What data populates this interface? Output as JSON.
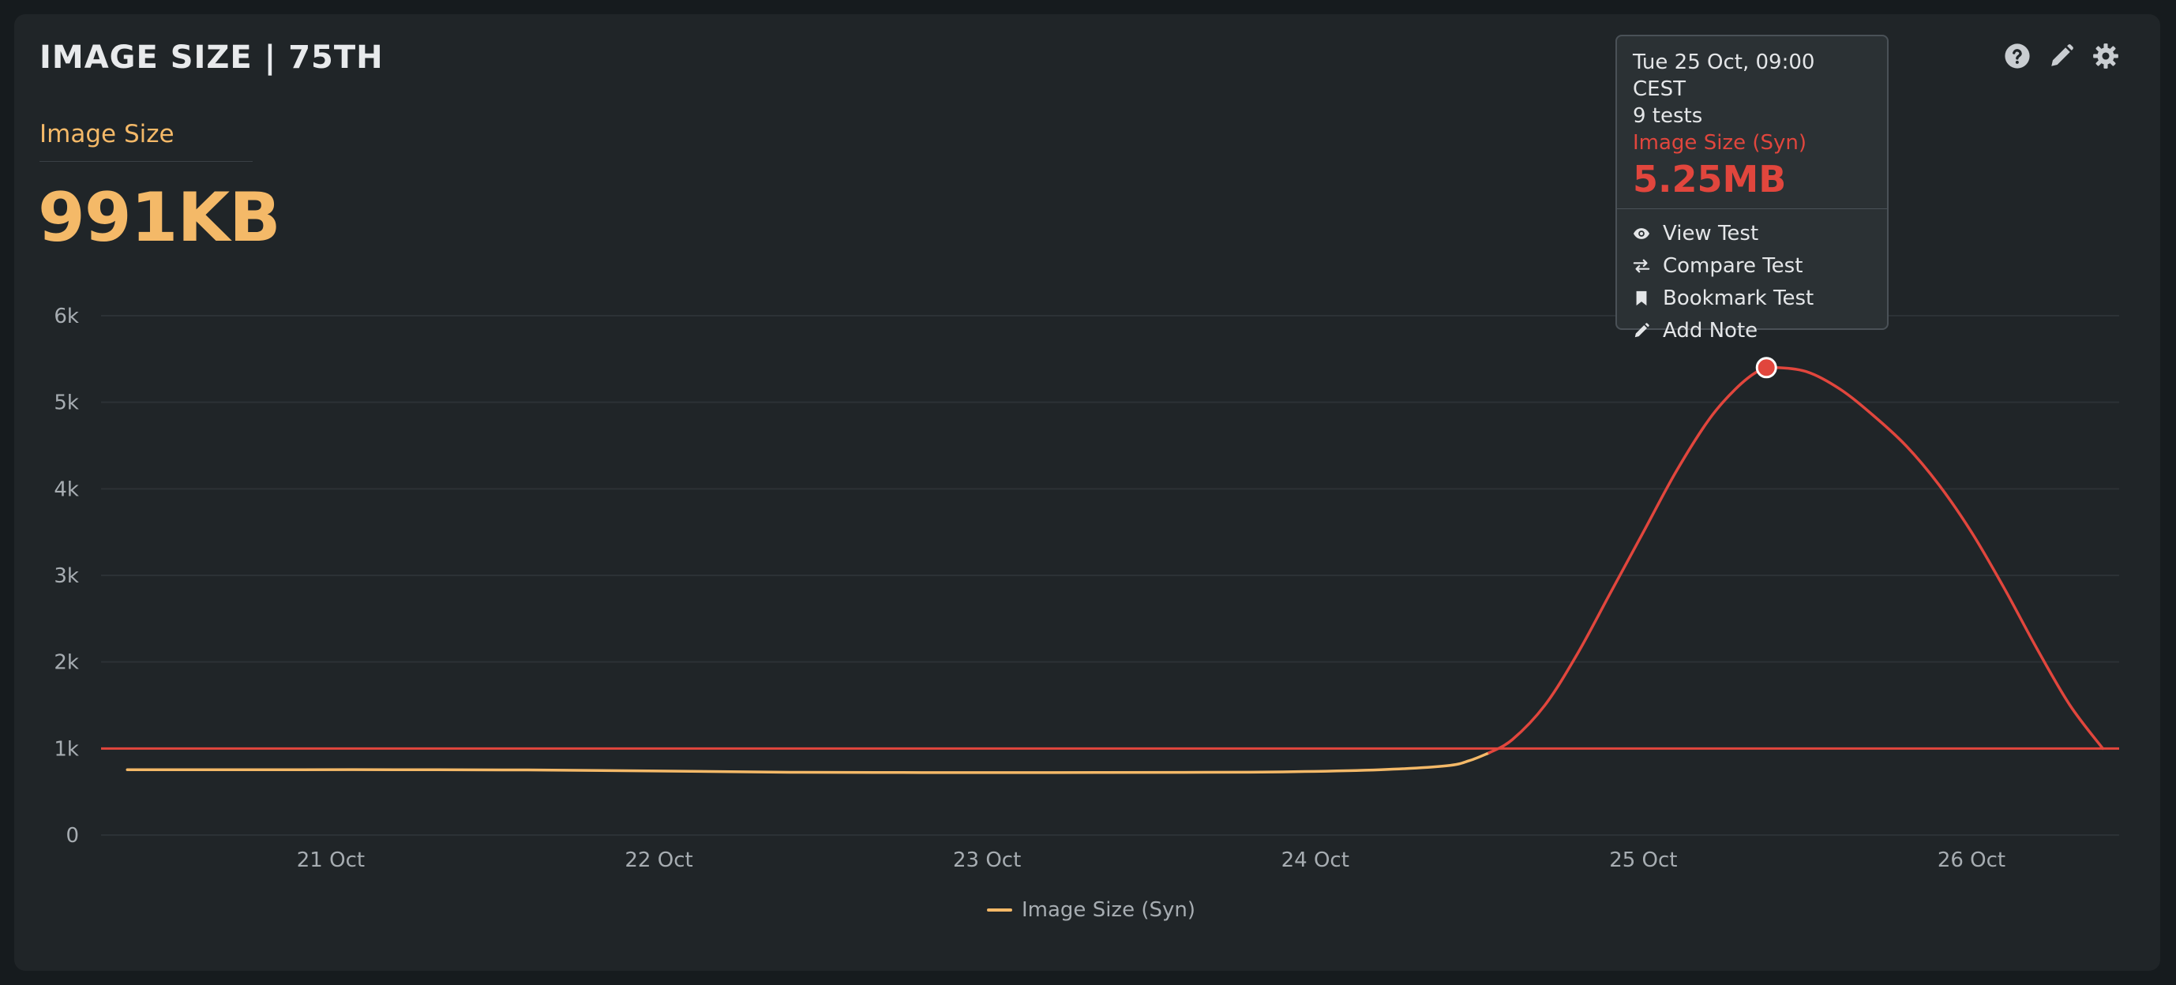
{
  "panel": {
    "title": "IMAGE SIZE | 75TH",
    "metric_label": "Image Size",
    "metric_value": "991KB"
  },
  "toolbar": {
    "icons": [
      "help-icon",
      "edit-icon",
      "settings-icon"
    ]
  },
  "tooltip": {
    "date": "Tue 25 Oct, 09:00 CEST",
    "tests": "9 tests",
    "series": "Image Size (Syn)",
    "value": "5.25MB",
    "actions": [
      {
        "label": "View Test",
        "icon": "eye-icon"
      },
      {
        "label": "Compare Test",
        "icon": "compare-arrows-icon"
      },
      {
        "label": "Bookmark Test",
        "icon": "bookmark-icon"
      },
      {
        "label": "Add Note",
        "icon": "pencil-icon"
      }
    ]
  },
  "colors": {
    "accent": "#f4b968",
    "alert": "#e1463d",
    "background": "#202528"
  },
  "chart_data": {
    "type": "line",
    "x_tick_labels": [
      "21 Oct",
      "22 Oct",
      "23 Oct",
      "24 Oct",
      "25 Oct",
      "26 Oct"
    ],
    "x_tick_values": [
      21,
      22,
      23,
      24,
      25,
      26
    ],
    "xlim": [
      20.3,
      26.45
    ],
    "y_tick_labels": [
      "0",
      "1k",
      "2k",
      "3k",
      "4k",
      "5k",
      "6k"
    ],
    "y_tick_values": [
      0,
      1000,
      2000,
      3000,
      4000,
      5000,
      6000
    ],
    "ylim": [
      0,
      6000
    ],
    "grid": true,
    "legend": "bottom-center",
    "threshold": 1000,
    "series": [
      {
        "name": "Image Size (Syn)",
        "color": "#f4b968",
        "x": [
          20.38,
          20.8,
          21.2,
          21.6,
          22.0,
          22.4,
          22.8,
          23.2,
          23.6,
          23.9,
          24.2,
          24.4,
          24.47,
          24.53
        ],
        "y": [
          755,
          755,
          755,
          752,
          740,
          725,
          722,
          722,
          724,
          730,
          755,
          800,
          860,
          950
        ]
      },
      {
        "name": "Image Size (Syn)",
        "color": "#e1463d",
        "x": [
          24.53,
          24.6,
          24.7,
          24.8,
          24.9,
          25.0,
          25.1,
          25.2,
          25.28,
          25.35,
          25.4,
          25.5,
          25.6,
          25.7,
          25.8,
          25.9,
          26.0,
          26.1,
          26.2,
          26.3,
          26.4
        ],
        "y": [
          950,
          1100,
          1500,
          2100,
          2800,
          3500,
          4200,
          4800,
          5150,
          5360,
          5400,
          5350,
          5150,
          4850,
          4500,
          4050,
          3500,
          2850,
          2150,
          1500,
          1000
        ]
      }
    ],
    "highlight": {
      "x": 25.375,
      "y": 5400
    }
  }
}
